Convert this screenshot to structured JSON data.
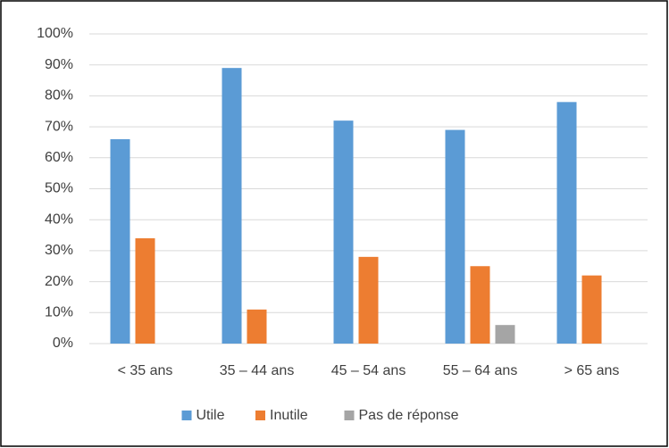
{
  "chart_data": {
    "type": "bar",
    "categories": [
      "< 35 ans",
      "35 – 44 ans",
      "45 – 54 ans",
      "55 – 64 ans",
      "> 65 ans"
    ],
    "series": [
      {
        "name": "Utile",
        "color": "#5b9bd5",
        "values": [
          66,
          89,
          72,
          69,
          78
        ]
      },
      {
        "name": "Inutile",
        "color": "#ed7d31",
        "values": [
          34,
          11,
          28,
          25,
          22
        ]
      },
      {
        "name": "Pas de réponse",
        "color": "#a5a5a5",
        "values": [
          0,
          0,
          0,
          6,
          0
        ]
      }
    ],
    "ylim": [
      0,
      100
    ],
    "yticks": [
      {
        "value": 0,
        "label": "0%"
      },
      {
        "value": 10,
        "label": "10%"
      },
      {
        "value": 20,
        "label": "20%"
      },
      {
        "value": 30,
        "label": "30%"
      },
      {
        "value": 40,
        "label": "40%"
      },
      {
        "value": 50,
        "label": "50%"
      },
      {
        "value": 60,
        "label": "60%"
      },
      {
        "value": 70,
        "label": "70%"
      },
      {
        "value": 80,
        "label": "80%"
      },
      {
        "value": 90,
        "label": "90%"
      },
      {
        "value": 100,
        "label": "100%"
      }
    ],
    "grid": true,
    "legend": "bottom"
  }
}
